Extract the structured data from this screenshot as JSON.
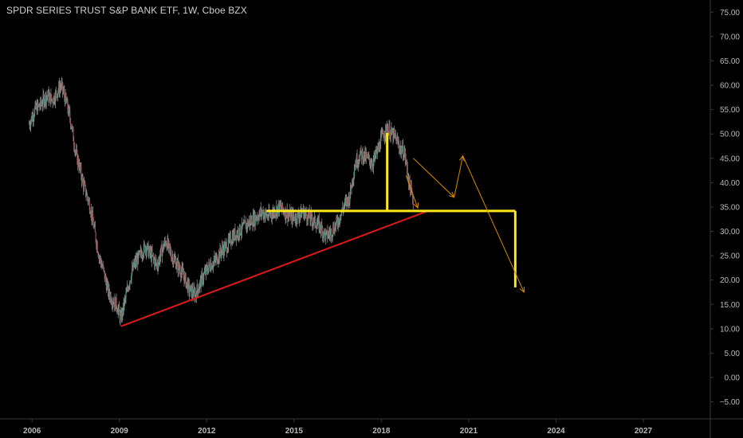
{
  "header": {
    "title": "SPDR SERIES TRUST S&P BANK ETF, 1W, Cboe BZX"
  },
  "colors": {
    "background": "#000000",
    "axis_line": "#3a3a3a",
    "tick_text": "#b8b8b8",
    "candle": "#8a8a8a",
    "candle_up": "#4e9a86",
    "candle_down": "#9a4e4e",
    "support_line": "#e01818",
    "neckline": "#ffe81a",
    "projection": "#d98a00"
  },
  "chart_data": {
    "type": "line",
    "title": "SPDR SERIES TRUST S&P BANK ETF, 1W, Cboe BZX",
    "xlabel": "",
    "ylabel": "",
    "ylim": [
      -8.5,
      77.5
    ],
    "xlim": [
      2004.9,
      2029.3
    ],
    "y_ticks": [
      "75.00",
      "70.00",
      "65.00",
      "60.00",
      "55.00",
      "50.00",
      "45.00",
      "40.00",
      "35.00",
      "30.00",
      "25.00",
      "20.00",
      "15.00",
      "10.00",
      "5.00",
      "0.00",
      "−5.00"
    ],
    "x_ticks": [
      "2006",
      "2009",
      "2012",
      "2015",
      "2018",
      "2021",
      "2024",
      "2027"
    ],
    "grid": false,
    "price_series": {
      "name": "",
      "x": [
        2005.9,
        2006.1,
        2006.3,
        2006.5,
        2006.7,
        2006.9,
        2007.0,
        2007.2,
        2007.35,
        2007.5,
        2007.6,
        2007.75,
        2007.9,
        2008.0,
        2008.15,
        2008.3,
        2008.45,
        2008.6,
        2008.75,
        2008.9,
        2009.05,
        2009.2,
        2009.35,
        2009.5,
        2009.7,
        2009.9,
        2010.1,
        2010.3,
        2010.45,
        2010.6,
        2010.8,
        2011.0,
        2011.2,
        2011.4,
        2011.6,
        2011.75,
        2011.9,
        2012.1,
        2012.3,
        2012.5,
        2012.7,
        2012.9,
        2013.1,
        2013.3,
        2013.5,
        2013.7,
        2013.9,
        2014.1,
        2014.3,
        2014.5,
        2014.7,
        2014.9,
        2015.1,
        2015.3,
        2015.5,
        2015.7,
        2015.9,
        2016.1,
        2016.3,
        2016.5,
        2016.7,
        2016.9,
        2017.1,
        2017.3,
        2017.5,
        2017.7,
        2017.9,
        2018.05,
        2018.2,
        2018.35,
        2018.5,
        2018.65,
        2018.8,
        2018.95,
        2019.1
      ],
      "y": [
        52,
        55,
        56,
        58,
        57,
        59,
        60,
        56,
        52,
        46,
        44,
        40,
        37,
        35,
        30,
        25,
        22,
        18,
        16,
        15,
        12,
        16,
        20,
        23,
        25,
        27,
        25,
        23,
        26,
        28,
        25,
        23,
        21,
        18,
        17,
        19,
        21,
        23,
        24,
        26,
        27,
        29,
        30,
        31,
        32,
        33,
        34,
        33,
        34,
        35,
        34,
        33,
        33,
        34,
        33,
        32,
        31,
        29,
        30,
        32,
        35,
        37,
        44,
        46,
        45,
        44,
        47,
        50,
        51,
        50,
        49,
        47,
        46,
        40,
        36
      ]
    },
    "annotations": [
      {
        "name": "support trendline",
        "x": [
          2009.05,
          2019.6
        ],
        "y": [
          10.5,
          34.2
        ]
      },
      {
        "name": "neckline",
        "x": [
          2014.05,
          2022.6
        ],
        "y": [
          34.2,
          34.2
        ]
      },
      {
        "name": "head height marker",
        "x": [
          2018.2,
          2018.2
        ],
        "y": [
          34.2,
          50.2
        ]
      },
      {
        "name": "target drop",
        "x": [
          2022.6,
          2022.6
        ],
        "y": [
          34.2,
          18.5
        ]
      },
      {
        "name": "projected path",
        "x": [
          2019.1,
          2020.5,
          2020.8,
          2022.9
        ],
        "y": [
          45,
          37,
          45.5,
          17.5
        ]
      },
      {
        "name": "short projection",
        "x": [
          2018.85,
          2019.25
        ],
        "y": [
          41.5,
          34.8
        ]
      }
    ]
  }
}
